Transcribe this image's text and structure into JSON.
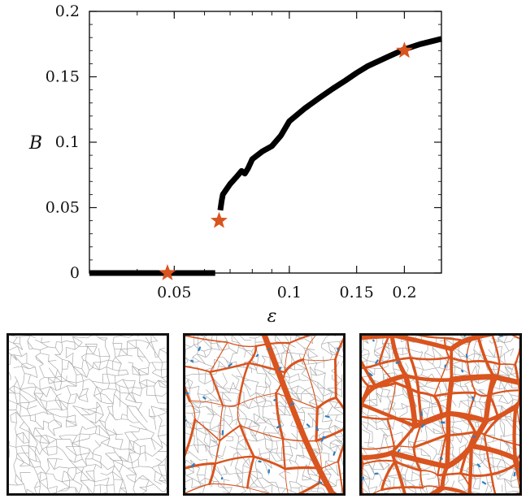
{
  "chart_data": {
    "type": "line",
    "xscale": "log",
    "xlabel": "ε",
    "ylabel": "B",
    "xlim": [
      0.03,
      0.25
    ],
    "ylim": [
      0,
      0.2
    ],
    "xticks": [
      {
        "value": 0.05,
        "label": "0.05"
      },
      {
        "value": 0.1,
        "label": "0.1"
      },
      {
        "value": 0.15,
        "label": "0.15"
      },
      {
        "value": 0.2,
        "label": "0.2"
      }
    ],
    "yticks": [
      {
        "value": 0,
        "label": "0"
      },
      {
        "value": 0.05,
        "label": "0.05"
      },
      {
        "value": 0.1,
        "label": "0.1"
      },
      {
        "value": 0.15,
        "label": "0.15"
      },
      {
        "value": 0.2,
        "label": "0.2"
      }
    ],
    "grid": false,
    "series": [
      {
        "segments": [
          [
            [
              0.03,
              0
            ],
            [
              0.064,
              0
            ]
          ],
          [
            [
              0.066,
              0.048
            ],
            [
              0.0665,
              0.055
            ],
            [
              0.067,
              0.06
            ],
            [
              0.07,
              0.068
            ],
            [
              0.073,
              0.074
            ],
            [
              0.075,
              0.078
            ],
            [
              0.0765,
              0.076
            ],
            [
              0.078,
              0.08
            ],
            [
              0.08,
              0.087
            ],
            [
              0.085,
              0.093
            ],
            [
              0.09,
              0.097
            ],
            [
              0.095,
              0.105
            ],
            [
              0.1,
              0.116
            ],
            [
              0.11,
              0.126
            ],
            [
              0.12,
              0.134
            ],
            [
              0.13,
              0.141
            ],
            [
              0.14,
              0.147
            ],
            [
              0.15,
              0.153
            ],
            [
              0.16,
              0.158
            ],
            [
              0.18,
              0.165
            ],
            [
              0.2,
              0.171
            ],
            [
              0.22,
              0.175
            ],
            [
              0.25,
              0.179
            ]
          ]
        ],
        "color": "#000000"
      }
    ],
    "markers": [
      {
        "x": 0.048,
        "y": 0.0,
        "color": "#d9541e"
      },
      {
        "x": 0.0655,
        "y": 0.04,
        "color": "#d9541e"
      },
      {
        "x": 0.2,
        "y": 0.17,
        "color": "#d9541e"
      }
    ]
  },
  "panels": [
    {
      "name": "network-panel-low-strain",
      "gray_color": "#a9a9a9"
    },
    {
      "name": "network-panel-mid-strain",
      "gray_color": "#a9a9a9",
      "highlight_color": "#d9541e",
      "secondary_color": "#2a7fc4"
    },
    {
      "name": "network-panel-high-strain",
      "gray_color": "#a9a9a9",
      "highlight_color": "#d9541e",
      "secondary_color": "#2a7fc4"
    }
  ]
}
